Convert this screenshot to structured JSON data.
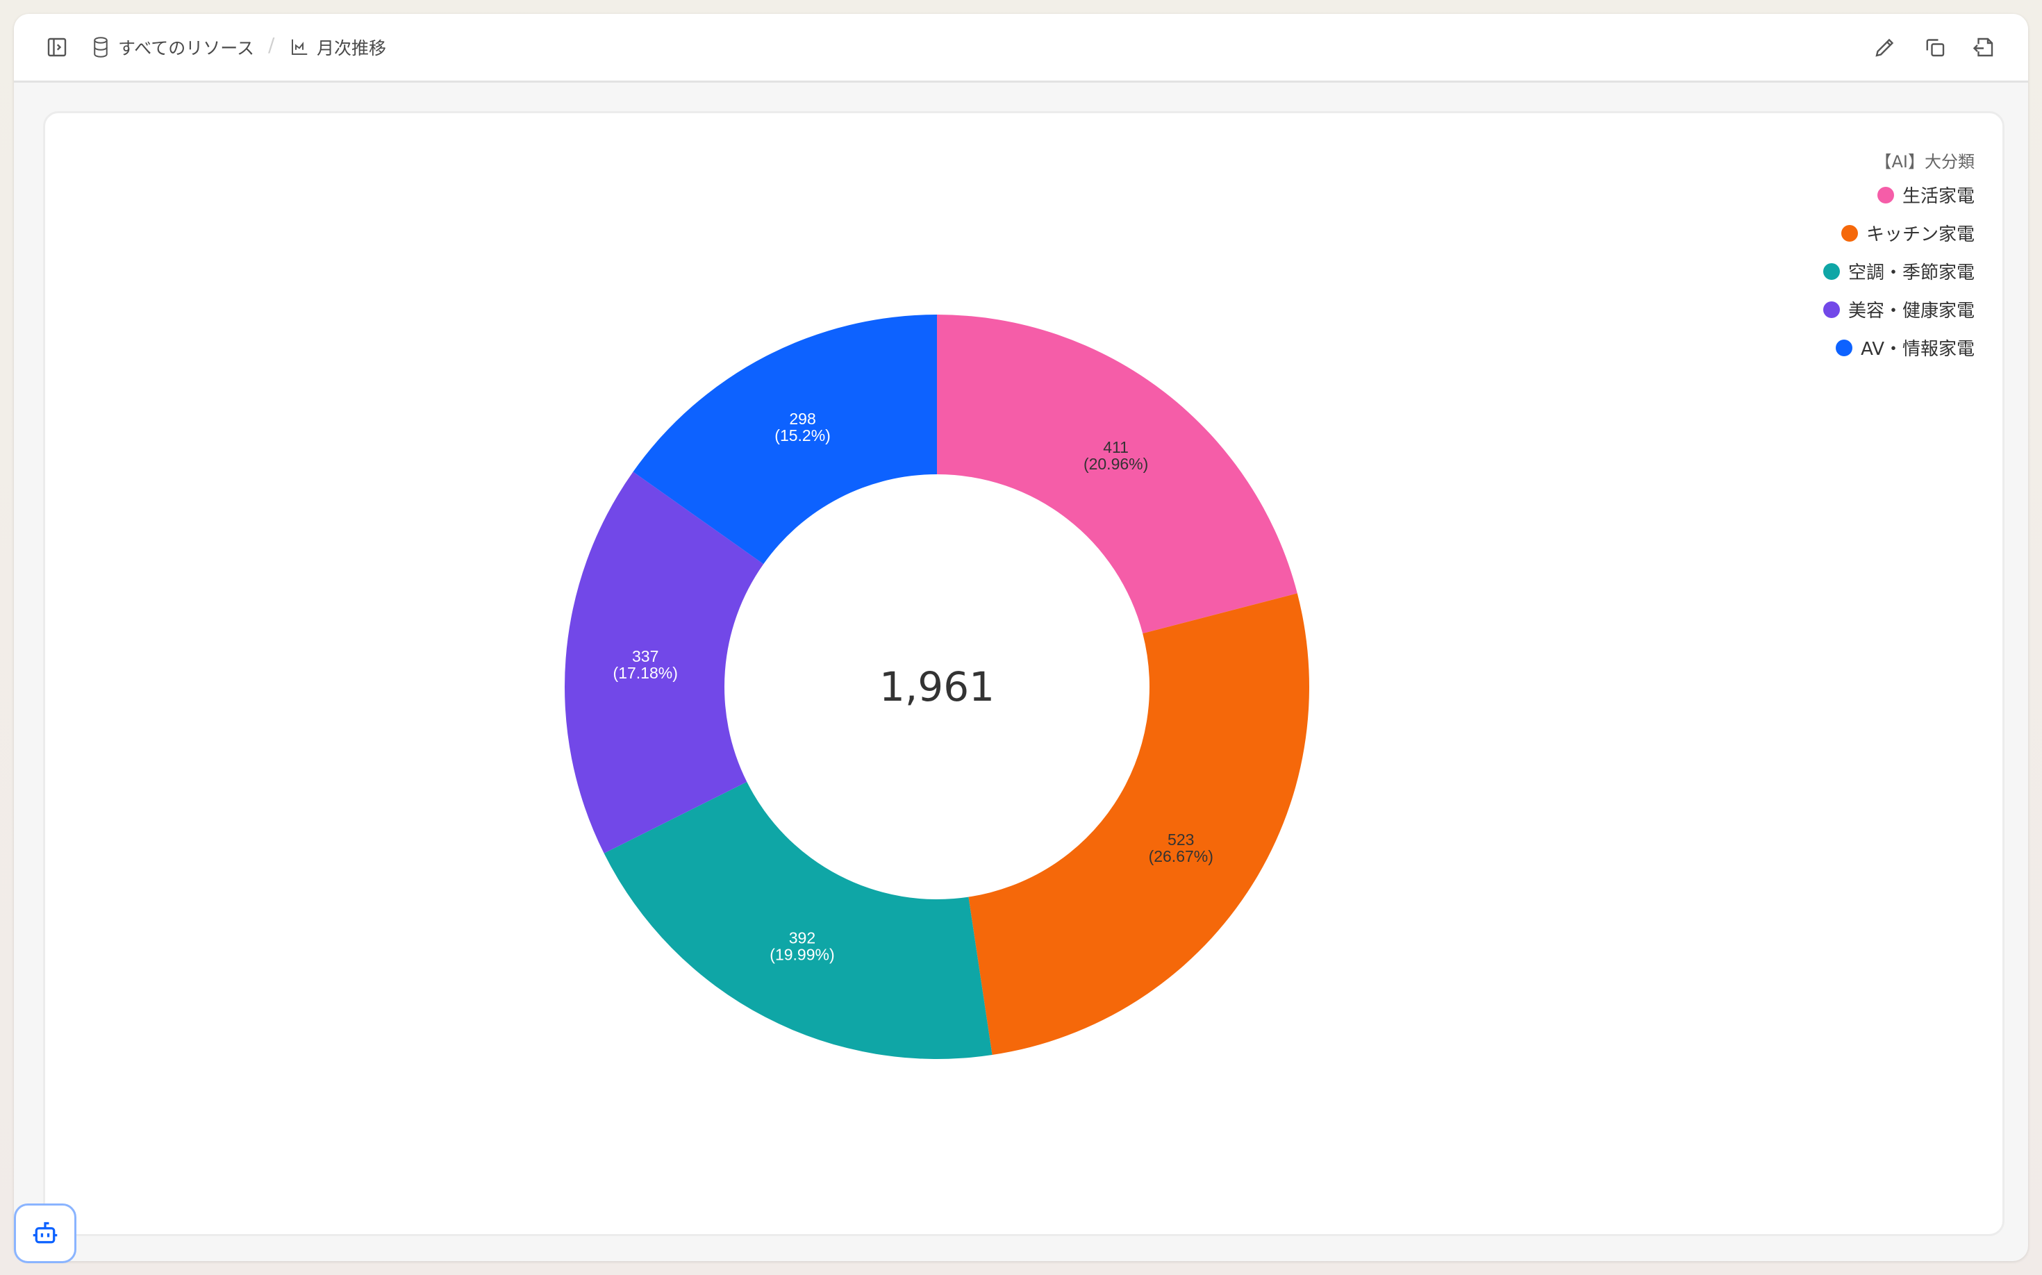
{
  "header": {
    "breadcrumb_root": "すべてのリソース",
    "breadcrumb_separator": "/",
    "breadcrumb_current": "月次推移",
    "icons": [
      "sidebar-toggle-icon",
      "database-icon",
      "line-chart-icon",
      "pencil-icon",
      "copy-icon",
      "export-icon"
    ]
  },
  "assistant_button": {
    "icon": "robot-icon"
  },
  "chart_data": {
    "type": "pie",
    "variant": "donut",
    "total_label": "1,961",
    "legend_title": "【AI】大分類",
    "legend_position": "top-right",
    "categories": [
      "生活家電",
      "キッチン家電",
      "空調・季節家電",
      "美容・健康家電",
      "AV・情報家電"
    ],
    "values": [
      411,
      523,
      392,
      337,
      298
    ],
    "percent_labels": [
      "(20.96%)",
      "(26.67%)",
      "(19.99%)",
      "(17.18%)",
      "(15.2%)"
    ],
    "colors": [
      "#F55DA8",
      "#F5680A",
      "#0FA6A6",
      "#7248E8",
      "#0D62FF"
    ],
    "label_colors": [
      "#333333",
      "#333333",
      "#ffffff",
      "#ffffff",
      "#ffffff"
    ]
  }
}
